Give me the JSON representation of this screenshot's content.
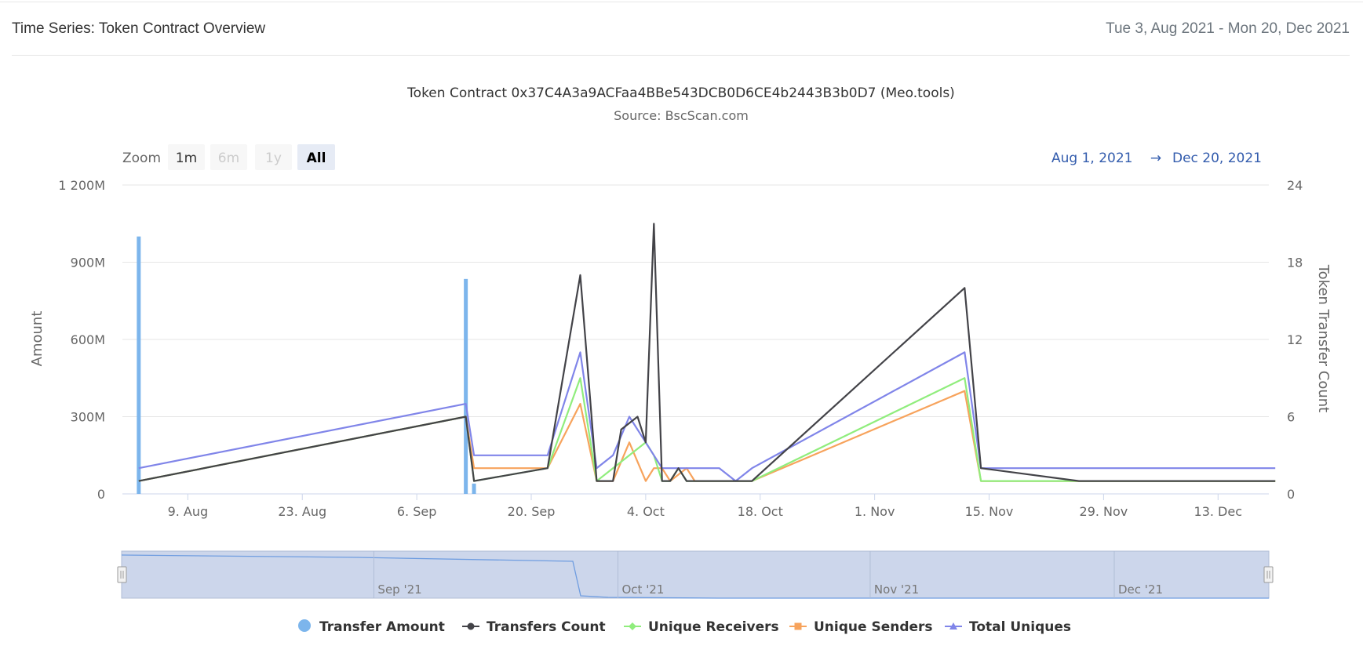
{
  "header": {
    "title": "Time Series: Token Contract Overview",
    "date_range": "Tue 3, Aug 2021 - Mon 20, Dec 2021"
  },
  "zoom": {
    "label": "Zoom",
    "buttons": [
      {
        "label": "1m",
        "state": "normal"
      },
      {
        "label": "6m",
        "state": "disabled"
      },
      {
        "label": "1y",
        "state": "disabled"
      },
      {
        "label": "All",
        "state": "selected"
      }
    ]
  },
  "range_selector": {
    "from": "Aug 1, 2021",
    "arrow": "→",
    "to": "Dec 20, 2021"
  },
  "navigator": {
    "labels": [
      "Sep '21",
      "Oct '21",
      "Nov '21",
      "Dec '21"
    ]
  },
  "colors": {
    "transfer_amount": "#7cb5ec",
    "transfers_count": "#434348",
    "unique_receivers": "#90ed7d",
    "unique_senders": "#f7a35c",
    "total_uniques": "#8085e9",
    "navigator_fill": "#ccd6eb",
    "range_text": "#335cad"
  },
  "chart_data": {
    "type": "line",
    "title": "Token Contract 0x37C4A3a9ACFaa4BBe543DCB0D6CE4b2443B3b0D7 (Meo.tools)",
    "subtitle": "Source: BscScan.com",
    "x_start_date": "2021-08-01",
    "x_range": [
      "2021-08-01",
      "2021-12-20"
    ],
    "x_tick_labels": [
      "9. Aug",
      "23. Aug",
      "6. Sep",
      "20. Sep",
      "4. Oct",
      "18. Oct",
      "1. Nov",
      "15. Nov",
      "29. Nov",
      "13. Dec"
    ],
    "y_left": {
      "label": "Amount",
      "range": [
        0,
        1200000000
      ],
      "tick_labels": [
        "0",
        "300M",
        "600M",
        "900M",
        "1 200M"
      ]
    },
    "y_right": {
      "label": "Token Transfer Count",
      "range": [
        0,
        24
      ],
      "tick_labels": [
        "0",
        "6",
        "12",
        "18",
        "24"
      ]
    },
    "grid": true,
    "legend_position": "bottom",
    "series": [
      {
        "name": "Transfer Amount",
        "axis": "left",
        "kind": "column",
        "points": [
          [
            "2021-08-03",
            1000000000
          ],
          [
            "2021-09-12",
            835000000
          ],
          [
            "2021-09-13",
            40000000
          ]
        ]
      },
      {
        "name": "Transfers Count",
        "axis": "right",
        "kind": "line",
        "points": [
          [
            "2021-08-03",
            1
          ],
          [
            "2021-09-12",
            6
          ],
          [
            "2021-09-13",
            1
          ],
          [
            "2021-09-22",
            2
          ],
          [
            "2021-09-26",
            17
          ],
          [
            "2021-09-28",
            1
          ],
          [
            "2021-09-30",
            1
          ],
          [
            "2021-10-01",
            5
          ],
          [
            "2021-10-03",
            6
          ],
          [
            "2021-10-04",
            4
          ],
          [
            "2021-10-05",
            21
          ],
          [
            "2021-10-06",
            1
          ],
          [
            "2021-10-07",
            1
          ],
          [
            "2021-10-08",
            2
          ],
          [
            "2021-10-09",
            1
          ],
          [
            "2021-10-15",
            1
          ],
          [
            "2021-10-17",
            1
          ],
          [
            "2021-11-12",
            16
          ],
          [
            "2021-11-14",
            2
          ],
          [
            "2021-11-26",
            1
          ],
          [
            "2021-12-20",
            1
          ]
        ]
      },
      {
        "name": "Unique Receivers",
        "axis": "right",
        "kind": "line",
        "points": [
          [
            "2021-08-03",
            1
          ],
          [
            "2021-09-12",
            6
          ],
          [
            "2021-09-13",
            1
          ],
          [
            "2021-09-22",
            2
          ],
          [
            "2021-09-26",
            9
          ],
          [
            "2021-09-28",
            1
          ],
          [
            "2021-09-30",
            2
          ],
          [
            "2021-10-04",
            4
          ],
          [
            "2021-10-05",
            3
          ],
          [
            "2021-10-06",
            1
          ],
          [
            "2021-10-07",
            1
          ],
          [
            "2021-10-08",
            2
          ],
          [
            "2021-10-09",
            1
          ],
          [
            "2021-10-15",
            1
          ],
          [
            "2021-10-17",
            1
          ],
          [
            "2021-11-12",
            9
          ],
          [
            "2021-11-14",
            1
          ],
          [
            "2021-12-20",
            1
          ]
        ]
      },
      {
        "name": "Unique Senders",
        "axis": "right",
        "kind": "line",
        "points": [
          [
            "2021-08-03",
            1
          ],
          [
            "2021-09-12",
            6
          ],
          [
            "2021-09-13",
            2
          ],
          [
            "2021-09-22",
            2
          ],
          [
            "2021-09-26",
            7
          ],
          [
            "2021-09-28",
            1
          ],
          [
            "2021-09-30",
            1
          ],
          [
            "2021-10-02",
            4
          ],
          [
            "2021-10-04",
            1
          ],
          [
            "2021-10-05",
            2
          ],
          [
            "2021-10-06",
            2
          ],
          [
            "2021-10-07",
            1
          ],
          [
            "2021-10-09",
            2
          ],
          [
            "2021-10-10",
            1
          ],
          [
            "2021-10-15",
            1
          ],
          [
            "2021-10-17",
            1
          ],
          [
            "2021-11-12",
            8
          ],
          [
            "2021-11-14",
            1
          ],
          [
            "2021-12-20",
            1
          ]
        ]
      },
      {
        "name": "Total Uniques",
        "axis": "right",
        "kind": "line",
        "points": [
          [
            "2021-08-03",
            2
          ],
          [
            "2021-09-12",
            7
          ],
          [
            "2021-09-13",
            3
          ],
          [
            "2021-09-22",
            3
          ],
          [
            "2021-09-26",
            11
          ],
          [
            "2021-09-28",
            2
          ],
          [
            "2021-09-30",
            3
          ],
          [
            "2021-10-02",
            6
          ],
          [
            "2021-10-04",
            4
          ],
          [
            "2021-10-06",
            2
          ],
          [
            "2021-10-13",
            2
          ],
          [
            "2021-10-15",
            1
          ],
          [
            "2021-10-17",
            2
          ],
          [
            "2021-11-12",
            11
          ],
          [
            "2021-11-14",
            2
          ],
          [
            "2021-12-20",
            2
          ]
        ]
      }
    ]
  }
}
